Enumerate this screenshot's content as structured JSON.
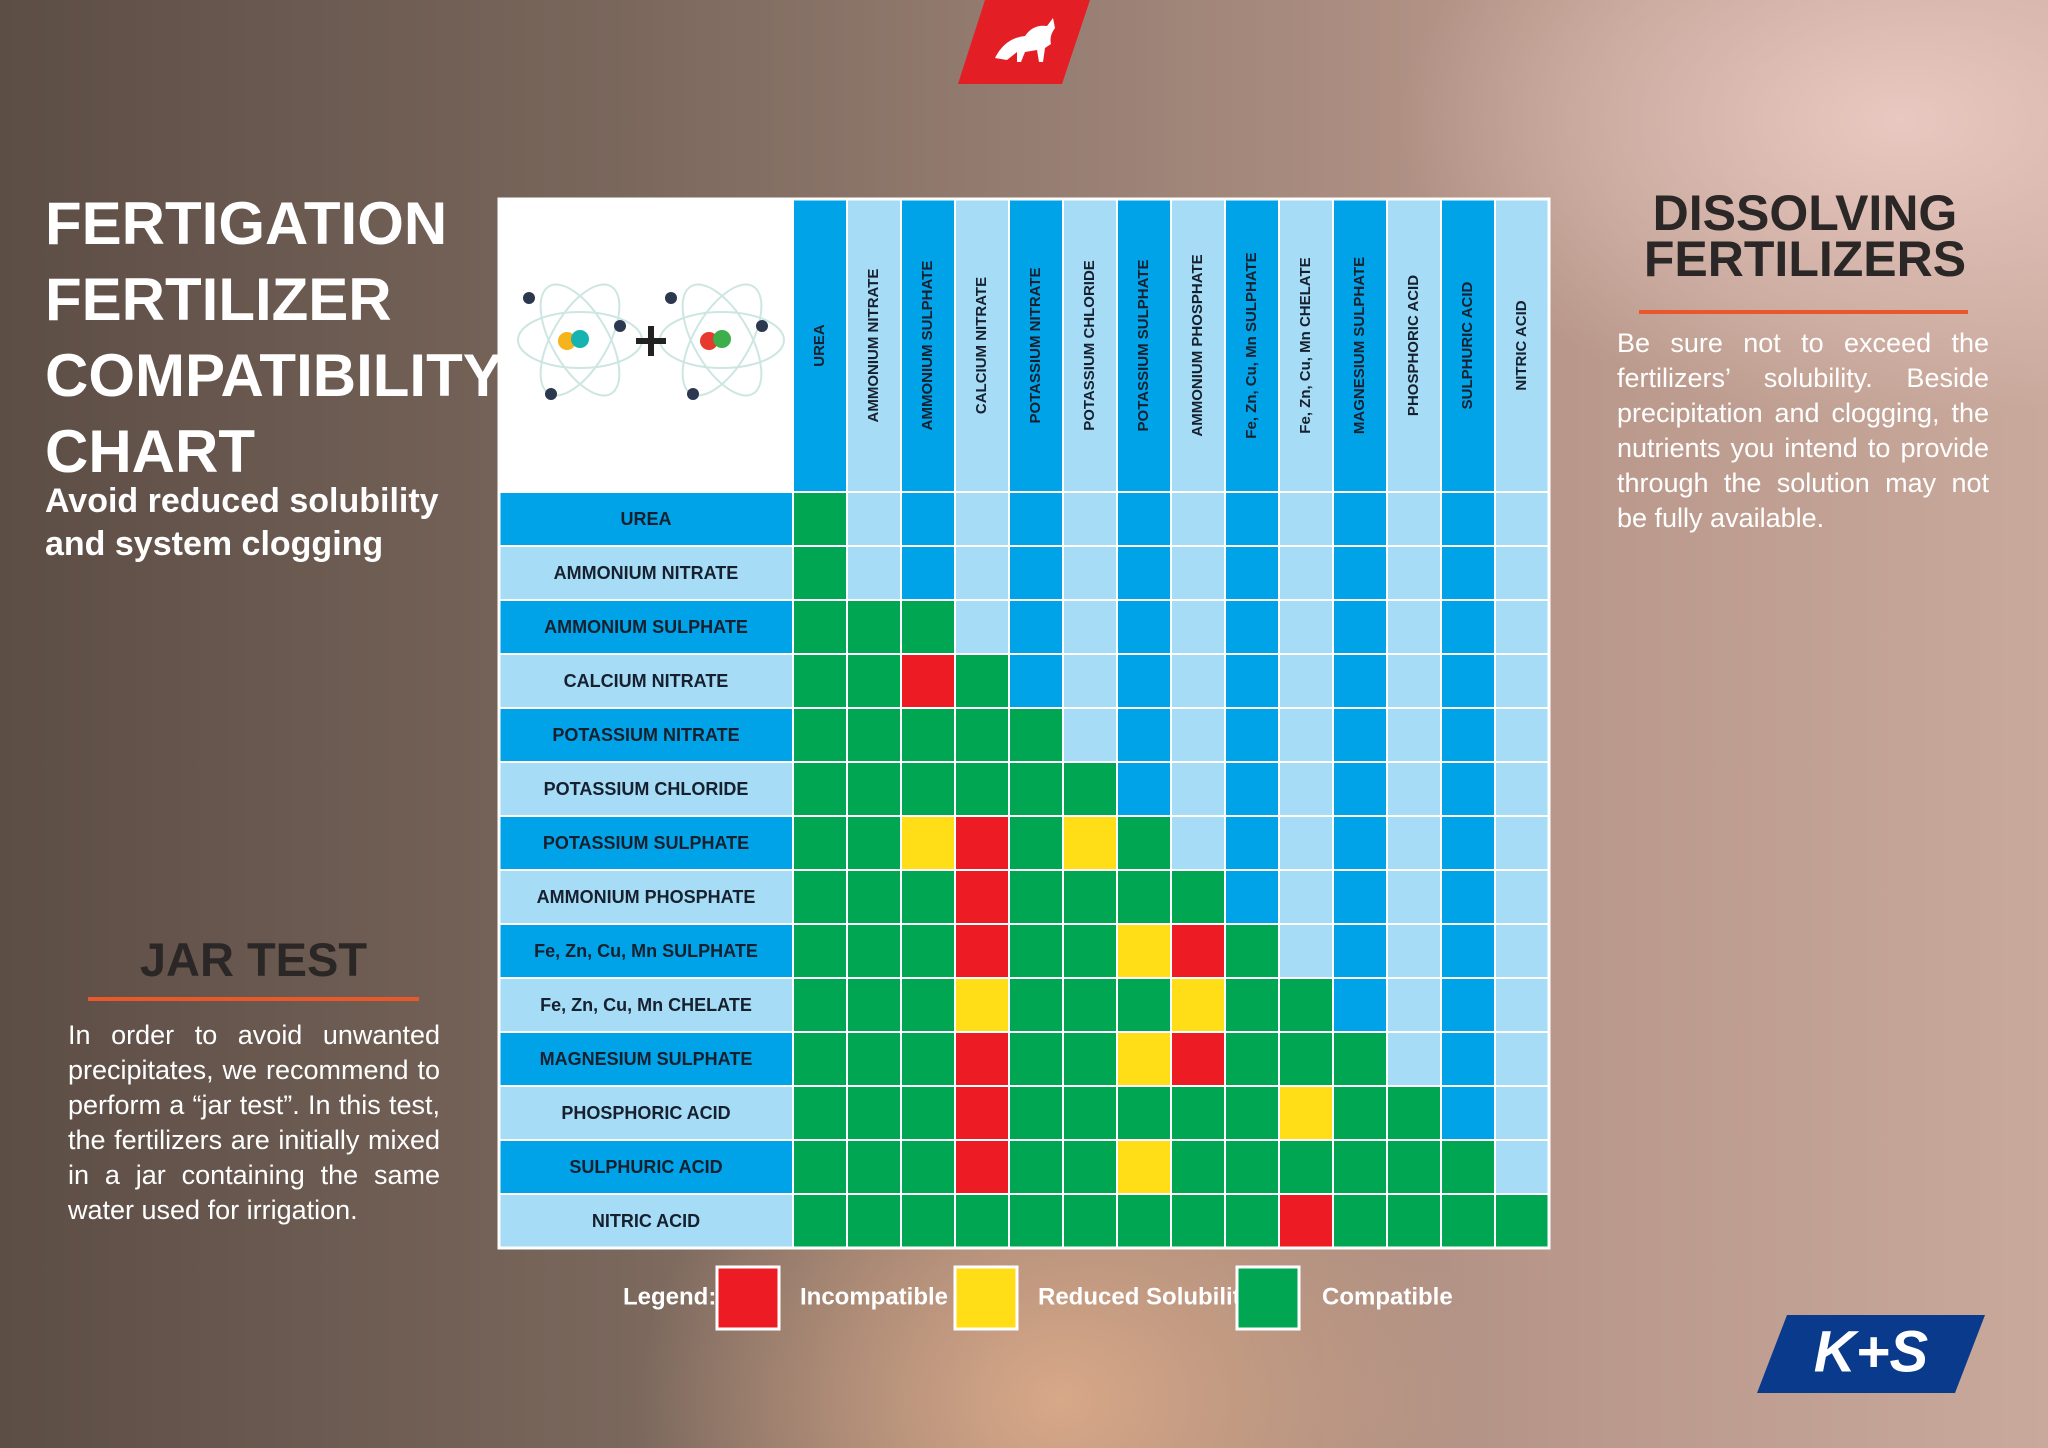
{
  "header": {
    "title_lines": [
      "FERTIGATION",
      "FERTILIZER",
      "COMPATIBILITY",
      "CHART"
    ],
    "subtitle": "Avoid reduced solubility and system clogging"
  },
  "chart": {
    "fertilizers": [
      "UREA",
      "AMMONIUM NITRATE",
      "AMMONIUM SULPHATE",
      "CALCIUM NITRATE",
      "POTASSIUM NITRATE",
      "POTASSIUM CHLORIDE",
      "POTASSIUM SULPHATE",
      "AMMONIUM PHOSPHATE",
      "Fe, Zn, Cu, Mn SULPHATE",
      "Fe, Zn, Cu, Mn CHELATE",
      "MAGNESIUM SULPHATE",
      "PHOSPHORIC ACID",
      "SULPHURIC ACID",
      "NITRIC ACID"
    ],
    "legend": {
      "label": "Legend:",
      "items": [
        {
          "name": "Incompatible",
          "color": "#ed1c24"
        },
        {
          "name": "Reduced Solubility",
          "color": "#ffde17"
        },
        {
          "name": "Compatible",
          "color": "#00a651"
        }
      ]
    },
    "matrix": [
      [
        2
      ],
      [
        2,
        null
      ],
      [
        2,
        2,
        2
      ],
      [
        2,
        2,
        0,
        2
      ],
      [
        2,
        2,
        2,
        2,
        2
      ],
      [
        2,
        2,
        2,
        2,
        2,
        2
      ],
      [
        2,
        2,
        1,
        0,
        2,
        1,
        2
      ],
      [
        2,
        2,
        2,
        0,
        2,
        2,
        2,
        2
      ],
      [
        2,
        2,
        2,
        0,
        2,
        2,
        1,
        0,
        2
      ],
      [
        2,
        2,
        2,
        1,
        2,
        2,
        2,
        1,
        2,
        2
      ],
      [
        2,
        2,
        2,
        0,
        2,
        2,
        1,
        0,
        2,
        2,
        2
      ],
      [
        2,
        2,
        2,
        0,
        2,
        2,
        2,
        2,
        2,
        1,
        2,
        2
      ],
      [
        2,
        2,
        2,
        0,
        2,
        2,
        1,
        2,
        2,
        2,
        2,
        2,
        2
      ],
      [
        2,
        2,
        2,
        2,
        2,
        2,
        2,
        2,
        2,
        0,
        2,
        2,
        2,
        2
      ]
    ]
  },
  "sidebar": {
    "title_lines": [
      "DISSOLVING",
      "FERTILIZERS"
    ],
    "body": "Be sure not to exceed the fertilizers’ solubility. Beside precipitation and clogging, the nutrients you intend to provide through the solution may not be fully available."
  },
  "jar_test": {
    "title": "JAR TEST",
    "body": "In order to avoid unwanted precipitates, we recommend to perform a “jar test”. In this test, the fertilizers are initially mixed in a jar containing the same water used for irrigation."
  },
  "brand": "K+S"
}
